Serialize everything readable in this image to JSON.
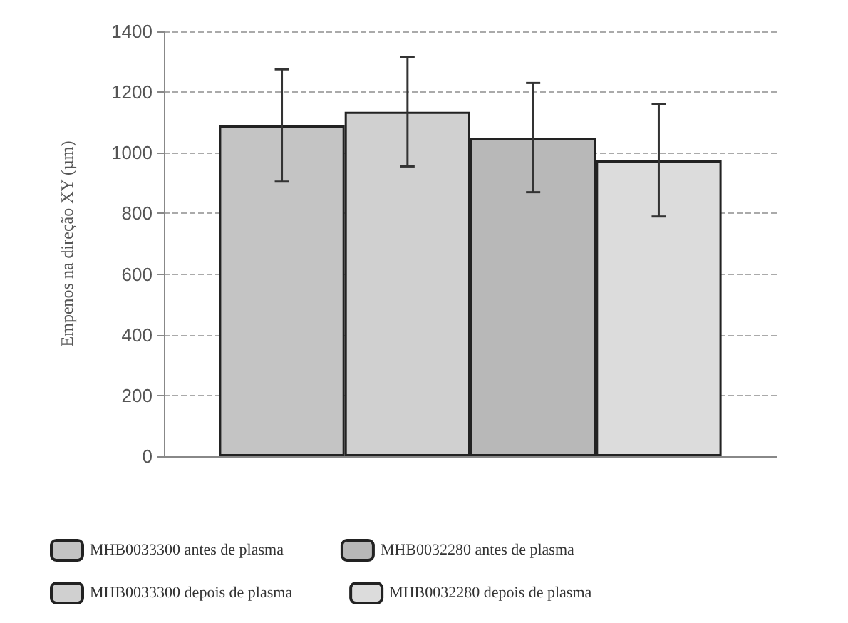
{
  "chart_data": {
    "type": "bar",
    "ylabel": "Empenos na direção XY (µm)",
    "categories": [
      null
    ],
    "series": [
      {
        "name": "MHB0033300 antes de plasma",
        "color": "#c4c4c4",
        "values": [
          1090
        ],
        "errors": [
          185
        ]
      },
      {
        "name": "MHB0033300 depois de plasma",
        "color": "#d0d0d0",
        "values": [
          1135
        ],
        "errors": [
          180
        ]
      },
      {
        "name": "MHB0032280 antes de plasma",
        "color": "#b8b8b8",
        "values": [
          1050
        ],
        "errors": [
          180
        ]
      },
      {
        "name": "MHB0032280 depois de plasma",
        "color": "#dcdcdc",
        "values": [
          975
        ],
        "errors": [
          185
        ]
      }
    ],
    "ylim": [
      0,
      1400
    ],
    "yticks": [
      0,
      200,
      400,
      600,
      800,
      1000,
      1200,
      1400
    ],
    "grid": "y",
    "legend": "bottom"
  }
}
